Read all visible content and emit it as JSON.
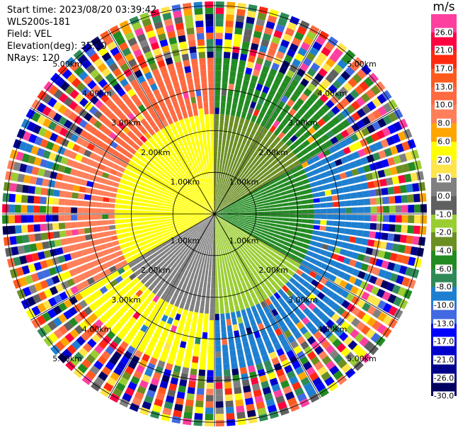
{
  "meta": {
    "start_time": "Start time: 2023/08/20 03:39:42",
    "instrument": "WLS200s-181",
    "field": "Field: VEL",
    "elevation": "Elevation(deg): 35.30",
    "nrays": "NRays: 120"
  },
  "colorbar": {
    "title": "m/s",
    "levels": [
      {
        "label": "26.0",
        "color": "#ff3fa0"
      },
      {
        "label": "21.0",
        "color": "#ff0040"
      },
      {
        "label": "17.0",
        "color": "#ff2a10"
      },
      {
        "label": "13.0",
        "color": "#ff5a1e"
      },
      {
        "label": "10.0",
        "color": "#ff6a40"
      },
      {
        "label": "8.0",
        "color": "#ff7f5a"
      },
      {
        "label": "6.0",
        "color": "#ffa500"
      },
      {
        "label": "2.0",
        "color": "#ffff00"
      },
      {
        "label": "1.0",
        "color": "#ffe44a"
      },
      {
        "label": "0.0",
        "color": "#808080"
      },
      {
        "label": "-1.0",
        "color": "#606060"
      },
      {
        "label": "-2.0",
        "color": "#9acd32"
      },
      {
        "label": "-4.0",
        "color": "#6b8e23"
      },
      {
        "label": "-6.0",
        "color": "#228b22"
      },
      {
        "label": "-8.0",
        "color": "#2e8b57"
      },
      {
        "label": "-10.0",
        "color": "#1e7fd0"
      },
      {
        "label": "-13.0",
        "color": "#4169e1"
      },
      {
        "label": "-17.0",
        "color": "#0000ff"
      },
      {
        "label": "-21.0",
        "color": "#0000cd"
      },
      {
        "label": "-26.0",
        "color": "#00008b"
      },
      {
        "label": "-30.0",
        "color": "#000060"
      }
    ]
  },
  "chart_data": {
    "type": "heatmap",
    "projection": "polar-ppi",
    "field": "VEL",
    "units": "m/s",
    "range_rings_km": [
      1,
      2,
      3,
      4,
      5
    ],
    "range_labels": [
      "1.00km",
      "2.00km",
      "3.00km",
      "4.00km",
      "5.00km"
    ],
    "max_range_km": 5.1,
    "nrays": 120,
    "sector_colors_by_azimuth_deg": [
      {
        "from": 0,
        "to": 60,
        "inner": "#6b8e23",
        "outer": "#228b22"
      },
      {
        "from": 60,
        "to": 120,
        "inner": "#228b22",
        "outer": "#1e7fd0"
      },
      {
        "from": 120,
        "to": 180,
        "inner": "#9acd32",
        "outer": "#1e7fd0"
      },
      {
        "from": 180,
        "to": 240,
        "inner": "#808080",
        "outer": "#ffff00"
      },
      {
        "from": 240,
        "to": 300,
        "inner": "#ffff00",
        "outer": "#ff7f5a"
      },
      {
        "from": 300,
        "to": 360,
        "inner": "#ffff00",
        "outer": "#ff6a40"
      }
    ],
    "grid": true
  }
}
